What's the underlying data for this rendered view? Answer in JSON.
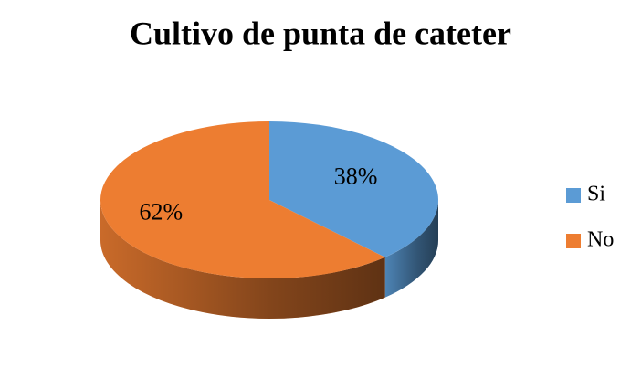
{
  "chart_data": {
    "type": "pie",
    "title": "Cultivo de punta de cateter",
    "categories": [
      "Si",
      "No"
    ],
    "values": [
      38,
      62
    ],
    "value_labels": [
      "38%",
      "62%"
    ],
    "colors": [
      "#5b9bd5",
      "#ed7d31"
    ],
    "legend": "right"
  }
}
